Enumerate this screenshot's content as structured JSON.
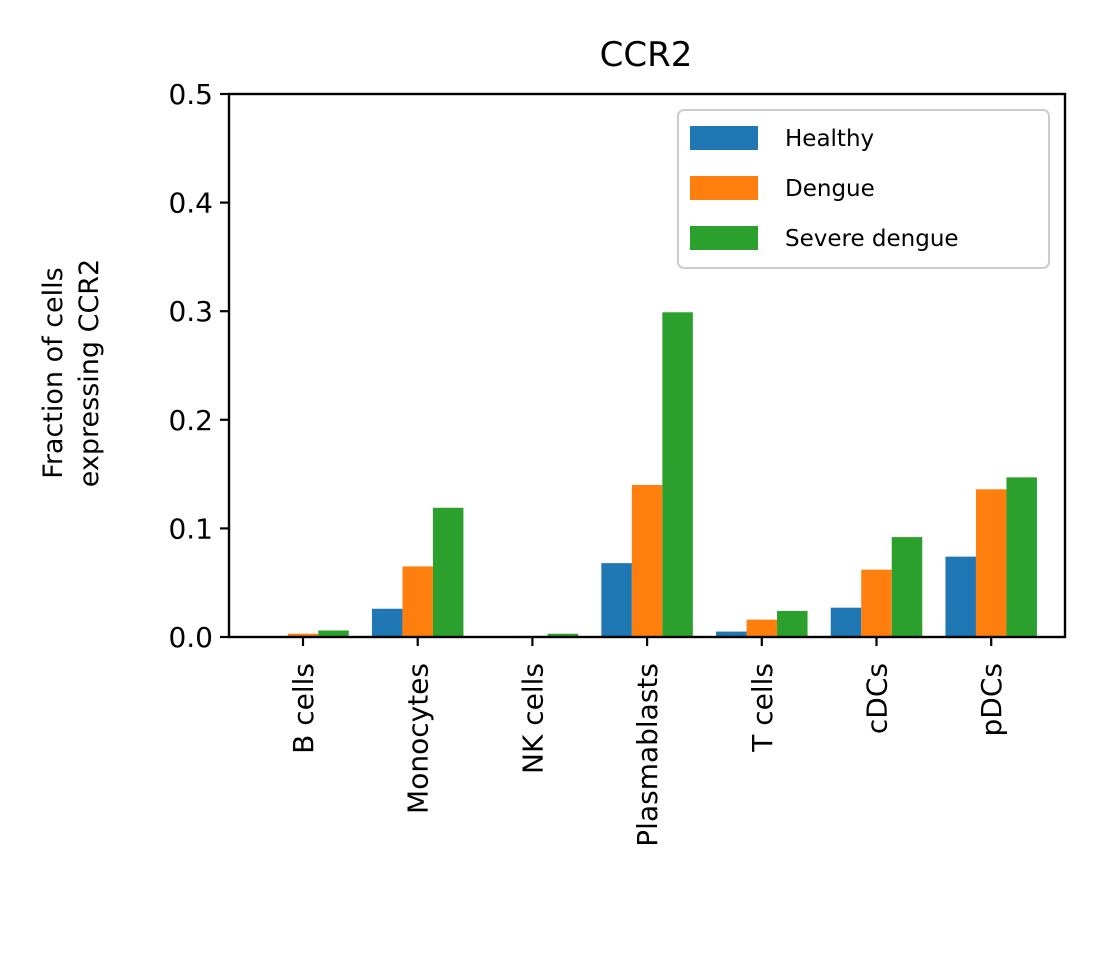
{
  "chart_data": {
    "type": "bar",
    "title": "CCR2",
    "ylabel_lines": [
      "Fraction of cells",
      "expressing CCR2"
    ],
    "xlabel": "",
    "ylim": [
      0,
      0.5
    ],
    "yticks": [
      "0.0",
      "0.1",
      "0.2",
      "0.3",
      "0.4",
      "0.5"
    ],
    "ytick_values": [
      0,
      0.1,
      0.2,
      0.3,
      0.4,
      0.5
    ],
    "categories": [
      "B cells",
      "Monocytes",
      "NK cells",
      "Plasmablasts",
      "T cells",
      "cDCs",
      "pDCs"
    ],
    "series": [
      {
        "name": "Healthy",
        "color": "#1f77b4",
        "values": [
          0.0,
          0.026,
          0.0,
          0.068,
          0.005,
          0.027,
          0.074
        ]
      },
      {
        "name": "Dengue",
        "color": "#ff7f0e",
        "values": [
          0.003,
          0.065,
          0.001,
          0.14,
          0.016,
          0.062,
          0.136
        ]
      },
      {
        "name": "Severe dengue",
        "color": "#2ca02c",
        "values": [
          0.006,
          0.119,
          0.003,
          0.299,
          0.024,
          0.092,
          0.147
        ]
      }
    ],
    "legend_position": "top-right",
    "grid": false
  }
}
